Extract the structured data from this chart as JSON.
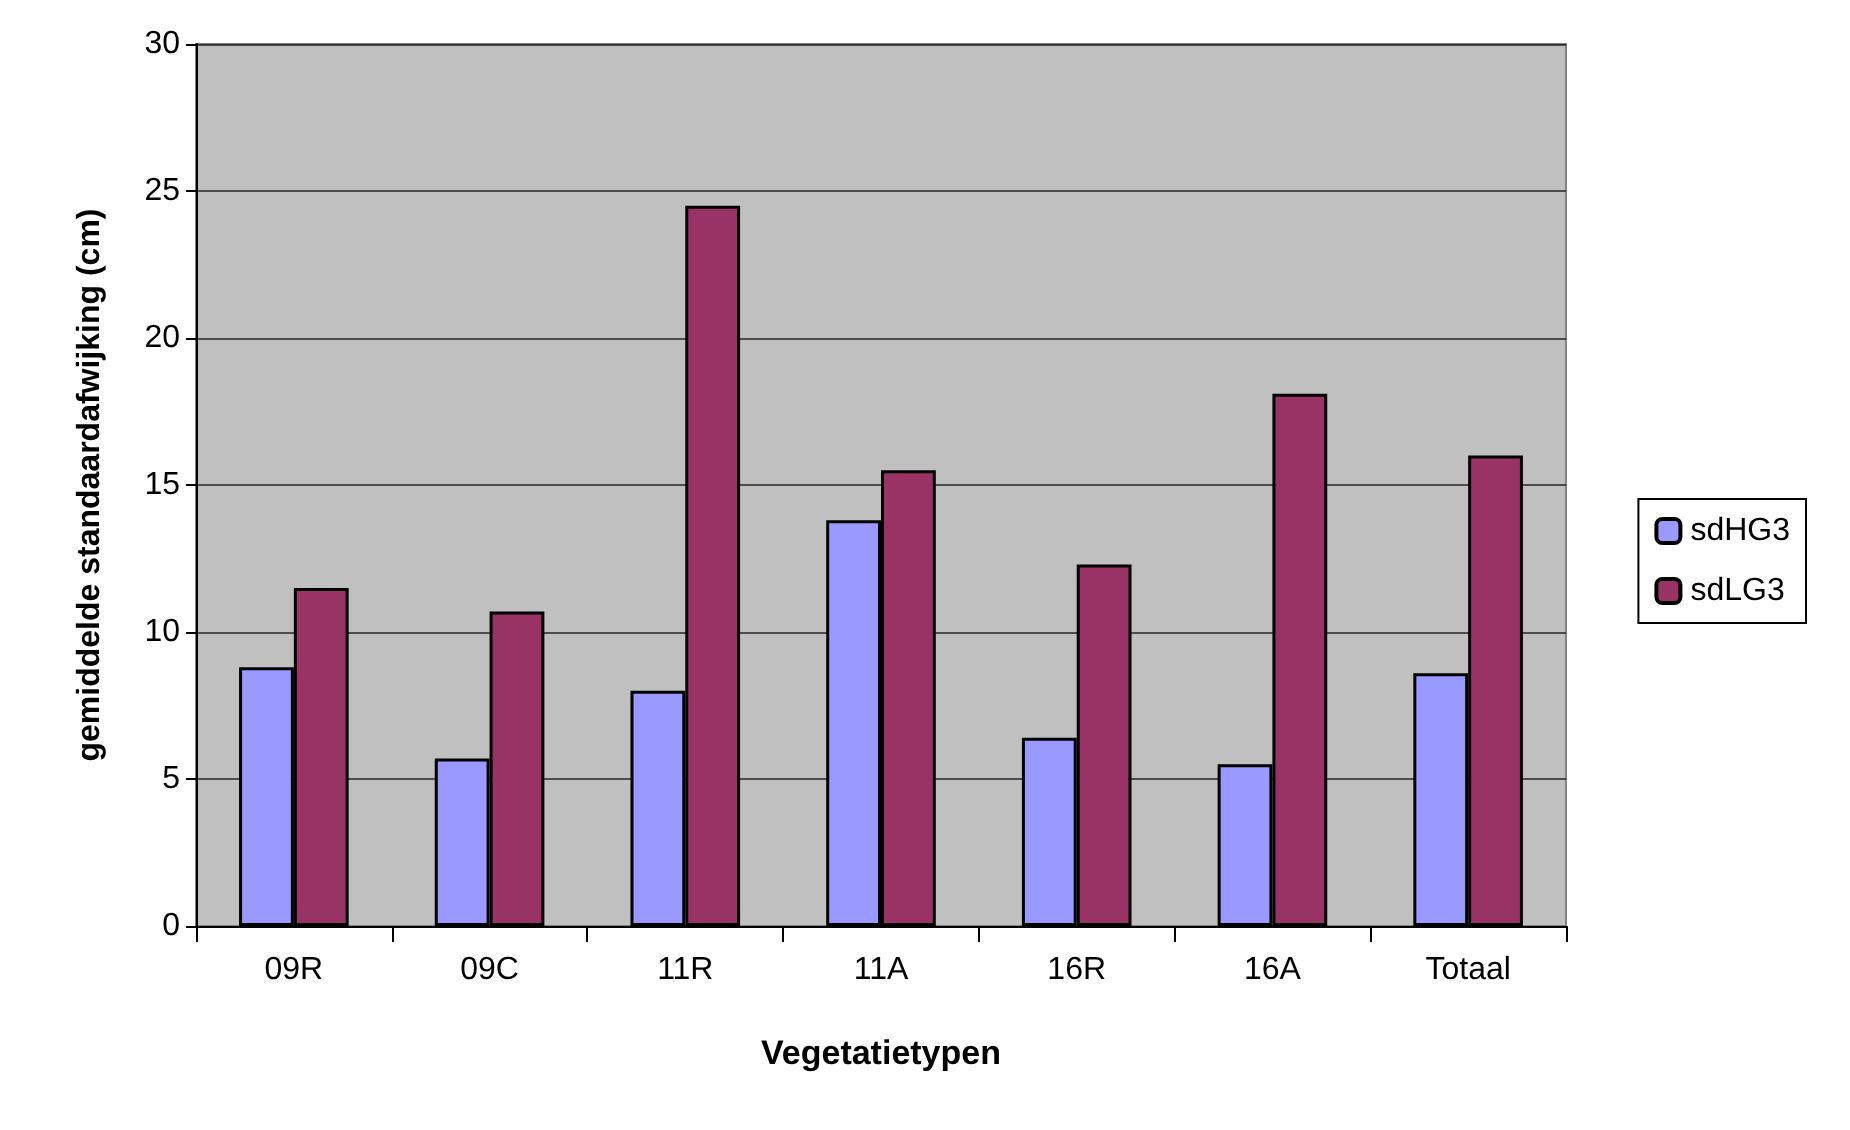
{
  "chart_data": {
    "type": "bar",
    "xlabel": "Vegetatietypen",
    "ylabel": "gemiddelde standaardafwijking (cm)",
    "categories": [
      "09R",
      "09C",
      "11R",
      "11A",
      "16R",
      "16A",
      "Totaal"
    ],
    "series": [
      {
        "name": "sdHG3",
        "color": "#9999ff",
        "values": [
          8.8,
          5.7,
          8.0,
          13.8,
          6.4,
          5.5,
          8.6
        ]
      },
      {
        "name": "sdLG3",
        "color": "#993366",
        "values": [
          11.5,
          10.7,
          24.5,
          15.5,
          12.3,
          18.1,
          16.0
        ]
      }
    ],
    "ylim": [
      0,
      30
    ],
    "yticks": [
      0,
      5,
      10,
      15,
      20,
      25,
      30
    ],
    "grid": "y",
    "legend": "right"
  }
}
